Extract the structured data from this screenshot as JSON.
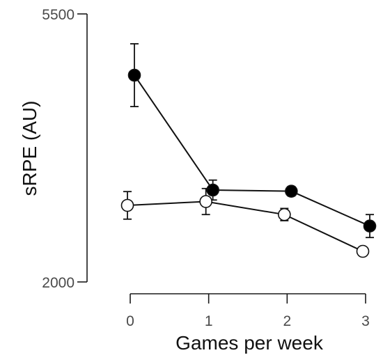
{
  "chart_data": {
    "type": "line",
    "title": "",
    "xlabel": "Games per week",
    "ylabel": "sRPE (AU)",
    "x": [
      0,
      1,
      2,
      3
    ],
    "x_ticks": [
      "0",
      "1",
      "2",
      "3"
    ],
    "ylim": [
      2000,
      5500
    ],
    "y_ticks": [
      "2000",
      "5500"
    ],
    "grid": false,
    "legend": "none",
    "series": [
      {
        "marker": "filled",
        "color": "#000000",
        "values": [
          4700,
          3200,
          3185,
          2730
        ],
        "errors": [
          410,
          130,
          60,
          150
        ]
      },
      {
        "marker": "open",
        "color": "#ffffff",
        "values": [
          3000,
          3050,
          2880,
          2400
        ],
        "errors": [
          180,
          170,
          80,
          50
        ]
      }
    ]
  }
}
